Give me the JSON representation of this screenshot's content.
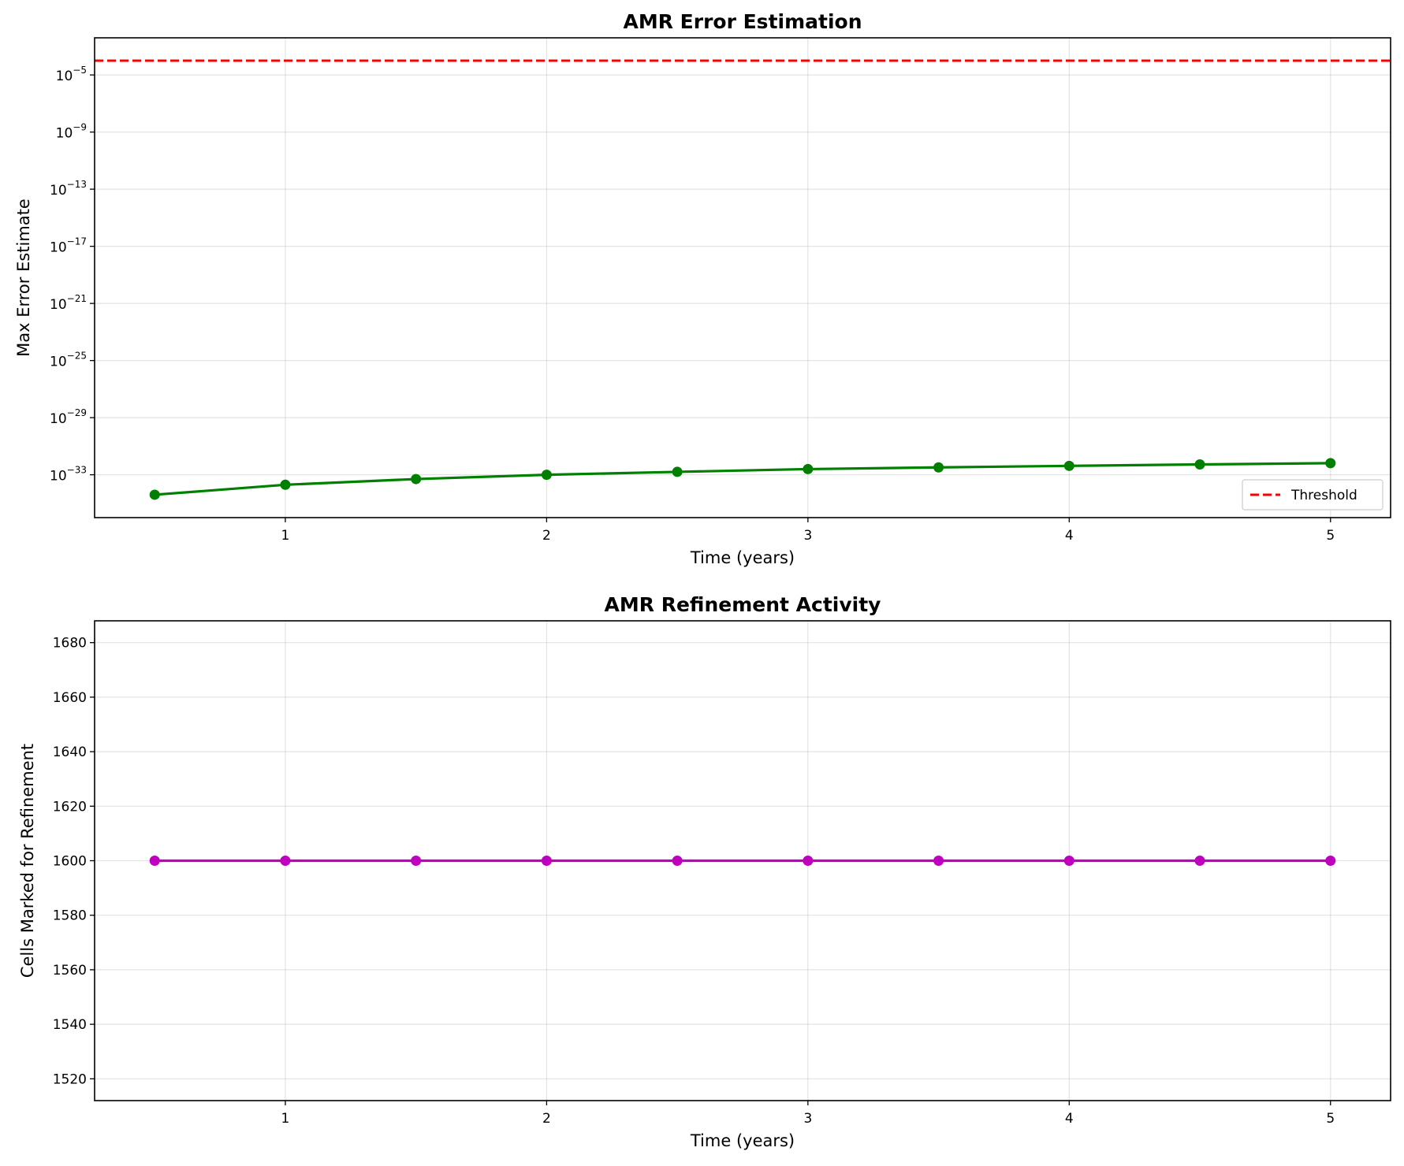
{
  "chart_data": [
    {
      "type": "line",
      "title": "AMR Error Estimation",
      "xlabel": "Time (years)",
      "ylabel": "Max Error Estimate",
      "yscale": "log",
      "xlim": [
        0.27,
        5.23
      ],
      "ylim_log10": [
        -36,
        -2.4
      ],
      "xticks": [
        1,
        2,
        3,
        4,
        5
      ],
      "xtick_labels": [
        "1",
        "2",
        "3",
        "4",
        "5"
      ],
      "yticks_log10": [
        -5,
        -9,
        -13,
        -17,
        -21,
        -25,
        -29,
        -33
      ],
      "ytick_labels": [
        {
          "base": "10",
          "exp": "−5"
        },
        {
          "base": "10",
          "exp": "−9"
        },
        {
          "base": "10",
          "exp": "−13"
        },
        {
          "base": "10",
          "exp": "−17"
        },
        {
          "base": "10",
          "exp": "−21"
        },
        {
          "base": "10",
          "exp": "−25"
        },
        {
          "base": "10",
          "exp": "−29"
        },
        {
          "base": "10",
          "exp": "−33"
        }
      ],
      "grid": true,
      "legend": {
        "position": "lower-right",
        "entries": [
          "Threshold"
        ]
      },
      "series": [
        {
          "color": "#008000",
          "marker": "circle",
          "x": [
            0.5,
            1.0,
            1.5,
            2.0,
            2.5,
            3.0,
            3.5,
            4.0,
            4.5,
            5.0
          ],
          "y": [
            4e-35,
            2e-34,
            5e-34,
            1e-33,
            1.6e-33,
            2.5e-33,
            3.3e-33,
            4.2e-33,
            5.3e-33,
            6.5e-33
          ]
        }
      ],
      "reference_lines": [
        {
          "name": "Threshold",
          "y": 0.0001,
          "color": "#ff0000",
          "style": "dashed"
        }
      ]
    },
    {
      "type": "line",
      "title": "AMR Refinement Activity",
      "xlabel": "Time (years)",
      "ylabel": "Cells Marked for Refinement",
      "xlim": [
        0.27,
        5.23
      ],
      "ylim": [
        1512,
        1688
      ],
      "xticks": [
        1,
        2,
        3,
        4,
        5
      ],
      "xtick_labels": [
        "1",
        "2",
        "3",
        "4",
        "5"
      ],
      "yticks": [
        1520,
        1540,
        1560,
        1580,
        1600,
        1620,
        1640,
        1660,
        1680
      ],
      "ytick_labels": [
        "1520",
        "1540",
        "1560",
        "1580",
        "1600",
        "1620",
        "1640",
        "1660",
        "1680"
      ],
      "grid": true,
      "series": [
        {
          "color": "#bf00bf",
          "marker": "circle",
          "x": [
            0.5,
            1.0,
            1.5,
            2.0,
            2.5,
            3.0,
            3.5,
            4.0,
            4.5,
            5.0
          ],
          "y": [
            1600,
            1600,
            1600,
            1600,
            1600,
            1600,
            1600,
            1600,
            1600,
            1600
          ]
        }
      ]
    }
  ]
}
